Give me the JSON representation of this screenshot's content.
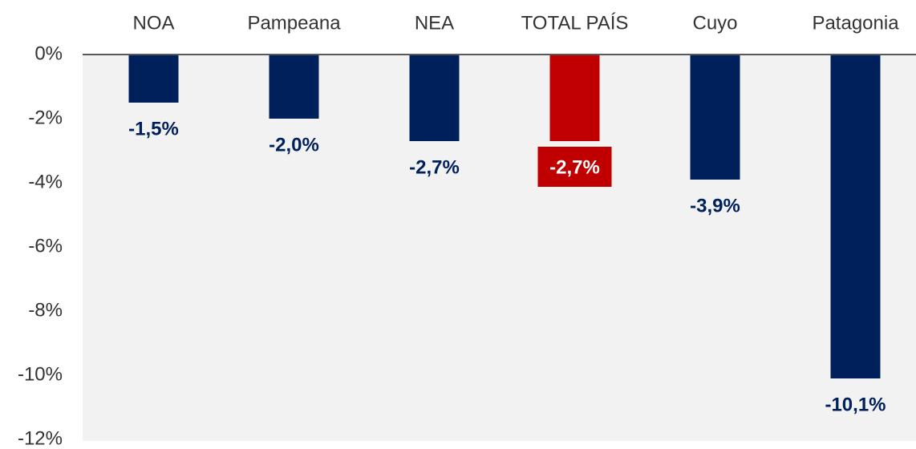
{
  "chart_data": {
    "type": "bar",
    "categories": [
      "NOA",
      "Pampeana",
      "NEA",
      "TOTAL PAÍS",
      "Cuyo",
      "Patagonia"
    ],
    "values": [
      -1.5,
      -2.0,
      -2.7,
      -2.7,
      -3.9,
      -10.1
    ],
    "value_labels": [
      "-1,5%",
      "-2,0%",
      "-2,7%",
      "-2,7%",
      "-3,9%",
      "-10,1%"
    ],
    "colors": [
      "#00205b",
      "#00205b",
      "#00205b",
      "#c00000",
      "#00205b",
      "#00205b"
    ],
    "highlight_color": "#c00000",
    "ylim": [
      0,
      -12
    ],
    "yticks": [
      {
        "value": 0,
        "label": "0%"
      },
      {
        "value": -2,
        "label": "-2%"
      },
      {
        "value": -4,
        "label": "-4%"
      },
      {
        "value": -6,
        "label": "-6%"
      },
      {
        "value": -8,
        "label": "-8%"
      },
      {
        "value": -10,
        "label": "-10%"
      },
      {
        "value": -12,
        "label": "-12%"
      }
    ],
    "grid": false
  }
}
